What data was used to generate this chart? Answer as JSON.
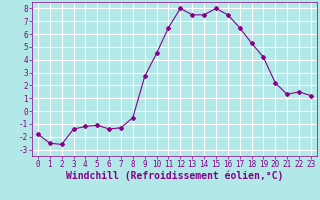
{
  "x": [
    0,
    1,
    2,
    3,
    4,
    5,
    6,
    7,
    8,
    9,
    10,
    11,
    12,
    13,
    14,
    15,
    16,
    17,
    18,
    19,
    20,
    21,
    22,
    23
  ],
  "y": [
    -1.8,
    -2.5,
    -2.6,
    -1.4,
    -1.2,
    -1.1,
    -1.4,
    -1.3,
    -0.5,
    2.7,
    4.5,
    6.5,
    8.0,
    7.5,
    7.5,
    8.0,
    7.5,
    6.5,
    5.3,
    4.2,
    2.2,
    1.3,
    1.5,
    1.2
  ],
  "line_color": "#880088",
  "marker": "D",
  "markersize": 2,
  "linewidth": 0.8,
  "xlabel": "Windchill (Refroidissement éolien,°C)",
  "xlim": [
    -0.5,
    23.5
  ],
  "ylim": [
    -3.5,
    8.5
  ],
  "yticks": [
    -3,
    -2,
    -1,
    0,
    1,
    2,
    3,
    4,
    5,
    6,
    7,
    8
  ],
  "xticks": [
    0,
    1,
    2,
    3,
    4,
    5,
    6,
    7,
    8,
    9,
    10,
    11,
    12,
    13,
    14,
    15,
    16,
    17,
    18,
    19,
    20,
    21,
    22,
    23
  ],
  "bg_color": "#b2e8e8",
  "grid_color": "#ffffff",
  "line_purple": "#880088",
  "xlabel_fontsize": 7,
  "tick_fontsize": 5.5
}
